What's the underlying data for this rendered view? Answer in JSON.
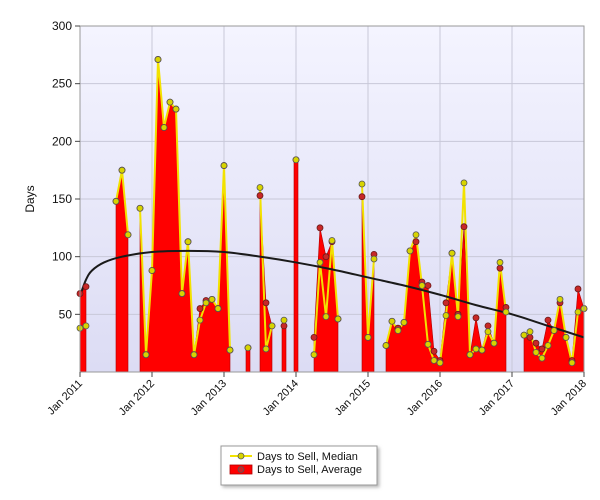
{
  "chart_data": {
    "type": "line",
    "title": "",
    "xlabel": "",
    "ylabel": "Days",
    "ylim": [
      0,
      300
    ],
    "xlim": [
      "2011-01",
      "2018-01"
    ],
    "y_ticks": [
      50,
      100,
      150,
      200,
      250,
      300
    ],
    "x_ticks": [
      "Jan 2011",
      "Jan 2012",
      "Jan 2013",
      "Jan 2014",
      "Jan 2015",
      "Jan 2016",
      "Jan 2017",
      "Jan 2018"
    ],
    "grid": true,
    "legend_position": "bottom-center",
    "plot_background": [
      "#f4f4ff",
      "#dcdcf4"
    ],
    "series": [
      {
        "name": "Days to Sell, Median",
        "type": "line",
        "color": "#f2e200",
        "marker_color": "#d8d400",
        "points": [
          [
            "2011-01",
            38
          ],
          [
            "2011-02",
            40
          ],
          [
            "2011-07",
            148
          ],
          [
            "2011-08",
            175
          ],
          [
            "2011-09",
            119
          ],
          [
            "2011-11",
            142
          ],
          [
            "2011-12",
            15
          ],
          [
            "2012-01",
            88
          ],
          [
            "2012-02",
            271
          ],
          [
            "2012-03",
            212
          ],
          [
            "2012-04",
            234
          ],
          [
            "2012-05",
            228
          ],
          [
            "2012-06",
            68
          ],
          [
            "2012-07",
            113
          ],
          [
            "2012-08",
            15
          ],
          [
            "2012-09",
            45
          ],
          [
            "2012-10",
            60
          ],
          [
            "2012-11",
            63
          ],
          [
            "2012-12",
            55
          ],
          [
            "2013-01",
            179
          ],
          [
            "2013-02",
            19
          ],
          [
            "2013-05",
            21
          ],
          [
            "2013-07",
            160
          ],
          [
            "2013-08",
            20
          ],
          [
            "2013-09",
            40
          ],
          [
            "2013-11",
            45
          ],
          [
            "2014-01",
            184
          ],
          [
            "2014-04",
            15
          ],
          [
            "2014-05",
            95
          ],
          [
            "2014-06",
            48
          ],
          [
            "2014-07",
            114
          ],
          [
            "2014-08",
            46
          ],
          [
            "2014-12",
            163
          ],
          [
            "2015-01",
            30
          ],
          [
            "2015-02",
            98
          ],
          [
            "2015-04",
            23
          ],
          [
            "2015-05",
            44
          ],
          [
            "2015-06",
            36
          ],
          [
            "2015-07",
            43
          ],
          [
            "2015-08",
            105
          ],
          [
            "2015-09",
            119
          ],
          [
            "2015-10",
            75
          ],
          [
            "2015-11",
            24
          ],
          [
            "2015-12",
            10
          ],
          [
            "2016-01",
            8
          ],
          [
            "2016-02",
            49
          ],
          [
            "2016-03",
            103
          ],
          [
            "2016-04",
            48
          ],
          [
            "2016-05",
            164
          ],
          [
            "2016-06",
            15
          ],
          [
            "2016-07",
            20
          ],
          [
            "2016-08",
            19
          ],
          [
            "2016-09",
            35
          ],
          [
            "2016-10",
            25
          ],
          [
            "2016-11",
            95
          ],
          [
            "2016-12",
            52
          ],
          [
            "2017-03",
            32
          ],
          [
            "2017-04",
            35
          ],
          [
            "2017-05",
            17
          ],
          [
            "2017-06",
            12
          ],
          [
            "2017-07",
            23
          ],
          [
            "2017-08",
            36
          ],
          [
            "2017-09",
            63
          ],
          [
            "2017-10",
            30
          ],
          [
            "2017-11",
            8
          ],
          [
            "2017-12",
            52
          ],
          [
            "2018-01",
            55
          ]
        ]
      },
      {
        "name": "Days to Sell, Average",
        "type": "area",
        "color": "#ff0000",
        "marker_color": "#c82828",
        "points": [
          [
            "2011-01",
            68
          ],
          [
            "2011-02",
            74
          ],
          [
            "2011-07",
            148
          ],
          [
            "2011-08",
            175
          ],
          [
            "2011-09",
            119
          ],
          [
            "2011-11",
            142
          ],
          [
            "2011-12",
            15
          ],
          [
            "2012-01",
            88
          ],
          [
            "2012-02",
            271
          ],
          [
            "2012-03",
            212
          ],
          [
            "2012-04",
            234
          ],
          [
            "2012-05",
            228
          ],
          [
            "2012-06",
            68
          ],
          [
            "2012-07",
            113
          ],
          [
            "2012-08",
            15
          ],
          [
            "2012-09",
            55
          ],
          [
            "2012-10",
            62
          ],
          [
            "2012-11",
            63
          ],
          [
            "2012-12",
            55
          ],
          [
            "2013-01",
            179
          ],
          [
            "2013-02",
            19
          ],
          [
            "2013-05",
            21
          ],
          [
            "2013-07",
            153
          ],
          [
            "2013-08",
            60
          ],
          [
            "2013-09",
            40
          ],
          [
            "2013-11",
            40
          ],
          [
            "2014-01",
            184
          ],
          [
            "2014-04",
            30
          ],
          [
            "2014-05",
            125
          ],
          [
            "2014-06",
            100
          ],
          [
            "2014-07",
            113
          ],
          [
            "2014-08",
            46
          ],
          [
            "2014-12",
            152
          ],
          [
            "2015-01",
            30
          ],
          [
            "2015-02",
            102
          ],
          [
            "2015-04",
            23
          ],
          [
            "2015-05",
            44
          ],
          [
            "2015-06",
            38
          ],
          [
            "2015-07",
            43
          ],
          [
            "2015-08",
            105
          ],
          [
            "2015-09",
            113
          ],
          [
            "2015-10",
            78
          ],
          [
            "2015-11",
            75
          ],
          [
            "2015-12",
            18
          ],
          [
            "2016-01",
            10
          ],
          [
            "2016-02",
            60
          ],
          [
            "2016-03",
            103
          ],
          [
            "2016-04",
            50
          ],
          [
            "2016-05",
            126
          ],
          [
            "2016-06",
            15
          ],
          [
            "2016-07",
            47
          ],
          [
            "2016-08",
            19
          ],
          [
            "2016-09",
            40
          ],
          [
            "2016-10",
            25
          ],
          [
            "2016-11",
            90
          ],
          [
            "2016-12",
            56
          ],
          [
            "2017-03",
            32
          ],
          [
            "2017-04",
            30
          ],
          [
            "2017-05",
            25
          ],
          [
            "2017-06",
            20
          ],
          [
            "2017-07",
            45
          ],
          [
            "2017-08",
            36
          ],
          [
            "2017-09",
            60
          ],
          [
            "2017-10",
            30
          ],
          [
            "2017-11",
            10
          ],
          [
            "2017-12",
            72
          ],
          [
            "2018-01",
            55
          ]
        ]
      },
      {
        "name": "",
        "type": "line",
        "color": "#1a1a1a",
        "points": [
          [
            "2011-01",
            66
          ],
          [
            "2011-02",
            80
          ],
          [
            "2011-03",
            88
          ],
          [
            "2011-05",
            95
          ],
          [
            "2011-08",
            100
          ],
          [
            "2012-01",
            104
          ],
          [
            "2012-07",
            105
          ],
          [
            "2013-01",
            104
          ],
          [
            "2013-07",
            100
          ],
          [
            "2014-01",
            95
          ],
          [
            "2014-07",
            89
          ],
          [
            "2015-01",
            82
          ],
          [
            "2015-07",
            75
          ],
          [
            "2016-01",
            67
          ],
          [
            "2016-07",
            58
          ],
          [
            "2017-01",
            50
          ],
          [
            "2017-07",
            40
          ],
          [
            "2018-01",
            30
          ]
        ]
      }
    ]
  },
  "legend": {
    "items": [
      {
        "label": "Days to Sell, Median",
        "color": "#f2e200",
        "marker_color": "#d8d400",
        "kind": "line"
      },
      {
        "label": "Days to Sell, Average",
        "color": "#ff0000",
        "marker_color": "#c82828",
        "kind": "area"
      }
    ]
  }
}
